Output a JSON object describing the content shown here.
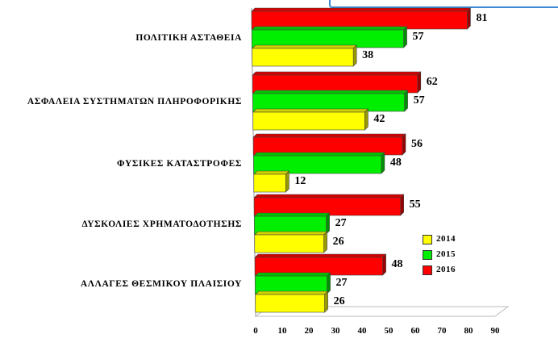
{
  "chart_data": {
    "type": "bar",
    "orientation": "horizontal",
    "categories": [
      "ΠΟΛΙΤΙΚΗ ΑΣΤΑΘΕΙΑ",
      "ΑΣΦΑΛΕΙΑ ΣΥΣΤΗΜΑΤΩΝ ΠΛΗΡΟΦΟΡΙΚΗΣ",
      "ΦΥΣΙΚΕΣ ΚΑΤΑΣΤΡΟΦΕΣ",
      "ΔΥΣΚΟΛΙΕΣ ΧΡΗΜΑΤΟΔΟΤΗΣΗΣ",
      "ΑΛΛΑΓΕΣ ΘΕΣΜΙΚΟΥ ΠΛΑΙΣΙΟΥ"
    ],
    "series": [
      {
        "name": "2014",
        "color": "#ffff00",
        "values": [
          38,
          42,
          12,
          26,
          26
        ]
      },
      {
        "name": "2015",
        "color": "#00ee00",
        "values": [
          57,
          57,
          48,
          27,
          27
        ]
      },
      {
        "name": "2016",
        "color": "#ff0000",
        "values": [
          81,
          62,
          56,
          55,
          48
        ]
      }
    ],
    "legend_order": [
      "2014",
      "2015",
      "2016"
    ],
    "legend_position": "right",
    "x_ticks": [
      "0",
      "10",
      "20",
      "30",
      "40",
      "50",
      "60",
      "70",
      "80",
      "90"
    ],
    "xlim": [
      0,
      90
    ],
    "style": "3d",
    "grid": false,
    "title": "",
    "xlabel": "",
    "ylabel": ""
  }
}
